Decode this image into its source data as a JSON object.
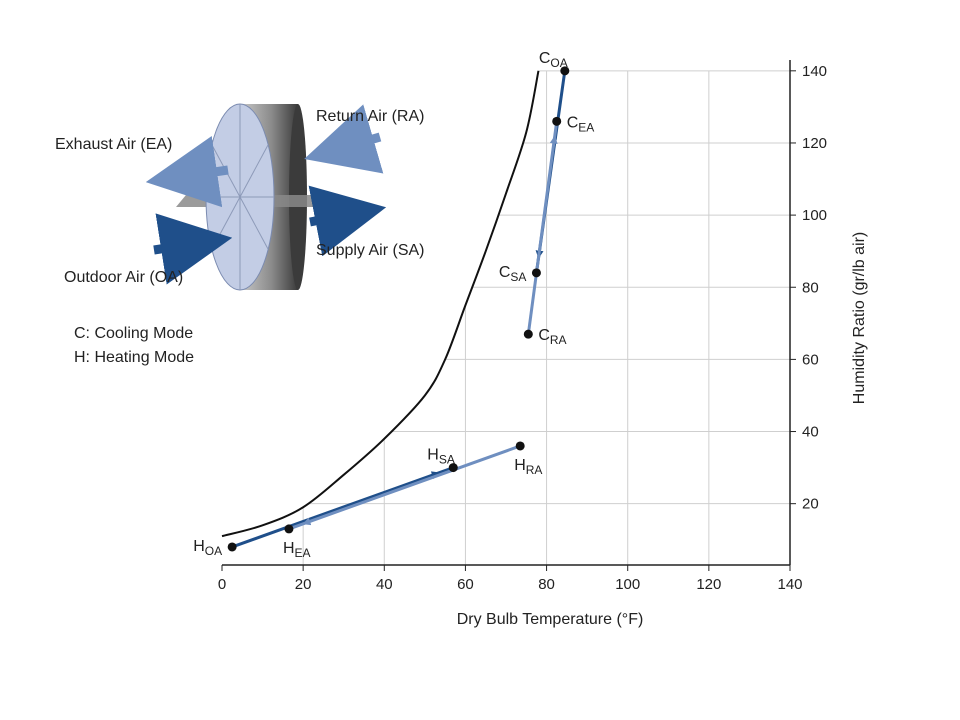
{
  "chart_data": {
    "type": "line",
    "xlabel": "Dry Bulb Temperature (°F)",
    "ylabel": "Humidity Ratio (gr/lb air)",
    "xlim": [
      0,
      140
    ],
    "ylim": [
      3,
      143
    ],
    "xticks": [
      0,
      20,
      40,
      60,
      80,
      100,
      120,
      140
    ],
    "yticks": [
      20,
      40,
      60,
      80,
      100,
      120,
      140
    ],
    "grid": "stepped under saturation curve",
    "saturation_curve": {
      "x": [
        0,
        10,
        20,
        30,
        40,
        50,
        55,
        60,
        65,
        70,
        75,
        78
      ],
      "y": [
        11,
        14,
        19,
        28,
        38,
        50,
        60,
        75,
        90,
        106,
        123,
        140
      ]
    },
    "points": [
      {
        "id": "C_OA",
        "main": "C",
        "sub": "OA",
        "x": 84.5,
        "y": 140,
        "label_pos": "above"
      },
      {
        "id": "C_EA",
        "main": "C",
        "sub": "EA",
        "x": 82.5,
        "y": 126,
        "label_pos": "right"
      },
      {
        "id": "C_SA",
        "main": "C",
        "sub": "SA",
        "x": 77.5,
        "y": 84,
        "label_pos": "left"
      },
      {
        "id": "C_RA",
        "main": "C",
        "sub": "RA",
        "x": 75.5,
        "y": 67,
        "label_pos": "right"
      },
      {
        "id": "H_OA",
        "main": "H",
        "sub": "OA",
        "x": 2.5,
        "y": 8,
        "label_pos": "left"
      },
      {
        "id": "H_EA",
        "main": "H",
        "sub": "EA",
        "x": 16.5,
        "y": 13,
        "label_pos": "below"
      },
      {
        "id": "H_SA",
        "main": "H",
        "sub": "SA",
        "x": 57,
        "y": 30,
        "label_pos": "above"
      },
      {
        "id": "H_RA",
        "main": "H",
        "sub": "RA",
        "x": 73.5,
        "y": 36,
        "label_pos": "below"
      }
    ],
    "series": [
      {
        "from": "C_OA",
        "to": "C_SA",
        "color": "#1f4f8a"
      },
      {
        "from": "C_RA",
        "to": "C_EA",
        "color": "#6f8fc0"
      },
      {
        "from": "H_OA",
        "to": "H_SA",
        "color": "#1f4f8a"
      },
      {
        "from": "H_RA",
        "to": "H_EA",
        "color": "#6f8fc0"
      }
    ],
    "legend": [
      "C: Cooling Mode",
      "H: Heating Mode"
    ],
    "wheel_labels": {
      "exhaust": "Exhaust Air (EA)",
      "return": "Return Air (RA)",
      "supply": "Supply Air (SA)",
      "outdoor": "Outdoor Air (OA)"
    }
  },
  "colors": {
    "dark_arrow": "#1f4f8a",
    "light_arrow": "#6f8fc0",
    "grid": "#cfcfcf",
    "axis": "#222222",
    "wheel_face": "#c3cde5",
    "wheel_side": "#777777"
  }
}
